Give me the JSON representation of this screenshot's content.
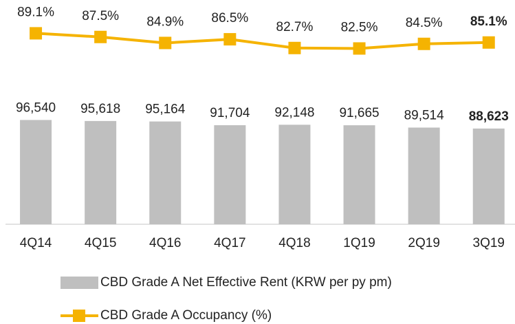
{
  "chart_data": {
    "type": "bar_line",
    "categories": [
      "4Q14",
      "4Q15",
      "4Q16",
      "4Q17",
      "4Q18",
      "1Q19",
      "2Q19",
      "3Q19"
    ],
    "series": [
      {
        "name": "CBD Grade A Net Effective Rent (KRW per py pm)",
        "type": "bar",
        "color": "#bfbfbf",
        "values": [
          96540,
          95618,
          95164,
          91704,
          92148,
          91665,
          89514,
          88623
        ],
        "value_labels": [
          "96,540",
          "95,618",
          "95,164",
          "91,704",
          "92,148",
          "91,665",
          "89,514",
          "88,623"
        ]
      },
      {
        "name": "CBD Grade A Occupancy (%)",
        "type": "line",
        "axis": "y2",
        "color": "#f5b301",
        "values": [
          89.1,
          87.5,
          84.9,
          86.5,
          82.7,
          82.5,
          84.5,
          85.1
        ],
        "value_labels": [
          "89.1%",
          "87.5%",
          "84.9%",
          "86.5%",
          "82.7%",
          "82.5%",
          "84.5%",
          "85.1%"
        ]
      }
    ],
    "ylim": [
      0,
      200000
    ],
    "y2lim": [
      6,
      100
    ],
    "legend": "bottom"
  }
}
